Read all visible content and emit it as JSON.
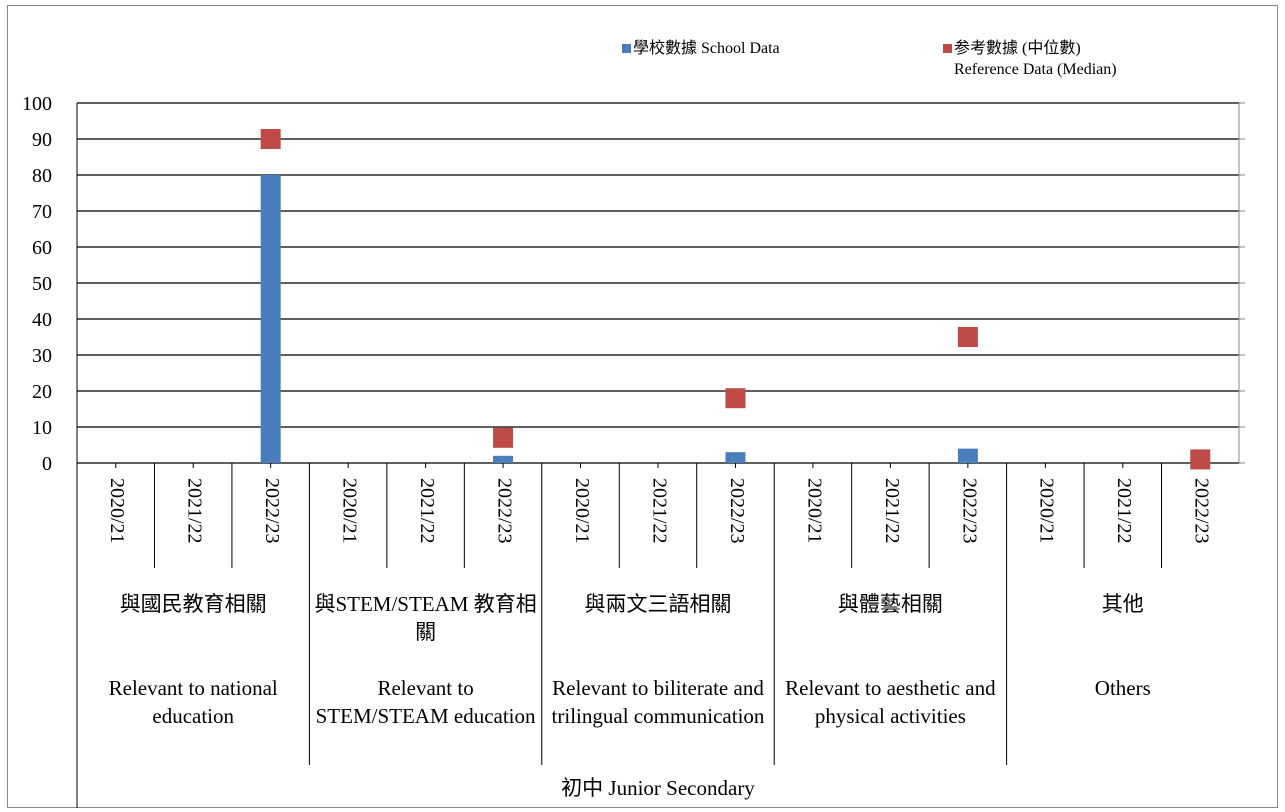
{
  "chart_data": {
    "type": "bar",
    "categories": [
      "2020/21",
      "2021/22",
      "2022/23",
      "2020/21",
      "2021/22",
      "2022/23",
      "2020/21",
      "2021/22",
      "2022/23",
      "2020/21",
      "2021/22",
      "2022/23",
      "2020/21",
      "2021/22",
      "2022/23"
    ],
    "groups": [
      {
        "label_zh": "與國民教育相關",
        "label_en": "Relevant to national education"
      },
      {
        "label_zh": "與STEM/STEAM 教育相關",
        "label_en": "Relevant to STEM/STEAM education"
      },
      {
        "label_zh": "與兩文三語相關",
        "label_en": "Relevant to biliterate and trilingual communication"
      },
      {
        "label_zh": "與體藝相關",
        "label_en": "Relevant to aesthetic and physical activities"
      },
      {
        "label_zh": "其他",
        "label_en": "Others"
      }
    ],
    "supergroup": "初中 Junior Secondary",
    "series": [
      {
        "name": "學校數據 School Data",
        "color": "#4a7ebb",
        "marker": "bar",
        "values": [
          null,
          null,
          80,
          null,
          null,
          2,
          null,
          null,
          3,
          null,
          null,
          4,
          null,
          null,
          null
        ]
      },
      {
        "name": "参考數據 (中位數)\nReference Data (Median)",
        "color": "#be4b48",
        "marker": "square",
        "values": [
          null,
          null,
          90,
          null,
          null,
          7,
          null,
          null,
          18,
          null,
          null,
          35,
          null,
          null,
          1
        ]
      }
    ],
    "ylim": [
      0,
      100
    ],
    "yticks": [
      0,
      10,
      20,
      30,
      40,
      50,
      60,
      70,
      80,
      90,
      100
    ],
    "grid": true
  }
}
